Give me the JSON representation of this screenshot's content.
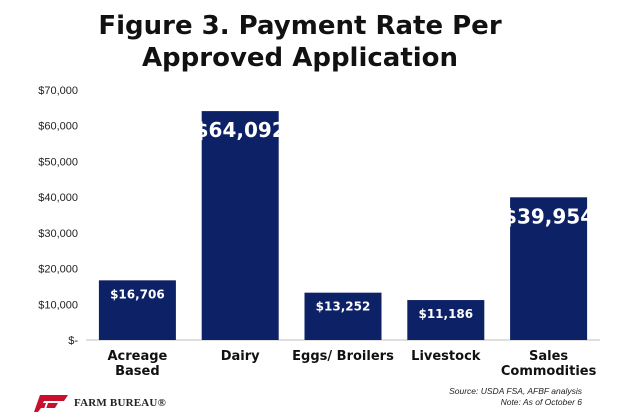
{
  "title": "Figure 3. Payment Rate Per Approved Application",
  "chart_data": {
    "type": "bar",
    "categories": [
      "Acreage Based",
      "Dairy",
      "Eggs/ Broilers",
      "Livestock",
      "Sales Commodities"
    ],
    "category_lines": [
      [
        "Acreage",
        "Based"
      ],
      [
        "Dairy"
      ],
      [
        "Eggs/ Broilers"
      ],
      [
        "Livestock"
      ],
      [
        "Sales",
        "Commodities"
      ]
    ],
    "values": [
      16706,
      64092,
      13252,
      11186,
      39954
    ],
    "data_labels": [
      "$16,706",
      "$64,092",
      "$13,252",
      "$11,186",
      "$39,954"
    ],
    "ylim": [
      0,
      70000
    ],
    "yticks": [
      0,
      10000,
      20000,
      30000,
      40000,
      50000,
      60000,
      70000
    ],
    "ytick_labels": [
      "$-",
      "$10,000",
      "$20,000",
      "$30,000",
      "$40,000",
      "$50,000",
      "$60,000",
      "$70,000"
    ],
    "bar_color": "#0d2166",
    "label_color": "#ffffff",
    "grid": false,
    "xlabel": "",
    "ylabel": ""
  },
  "source": {
    "line1": "Source:  USDA FSA, AFBF analysis",
    "line2": "Note: As of October 6"
  },
  "logo": {
    "text": "FARM BUREAU®",
    "icon": "farm-bureau-logo-icon",
    "color": "#c8102e"
  }
}
